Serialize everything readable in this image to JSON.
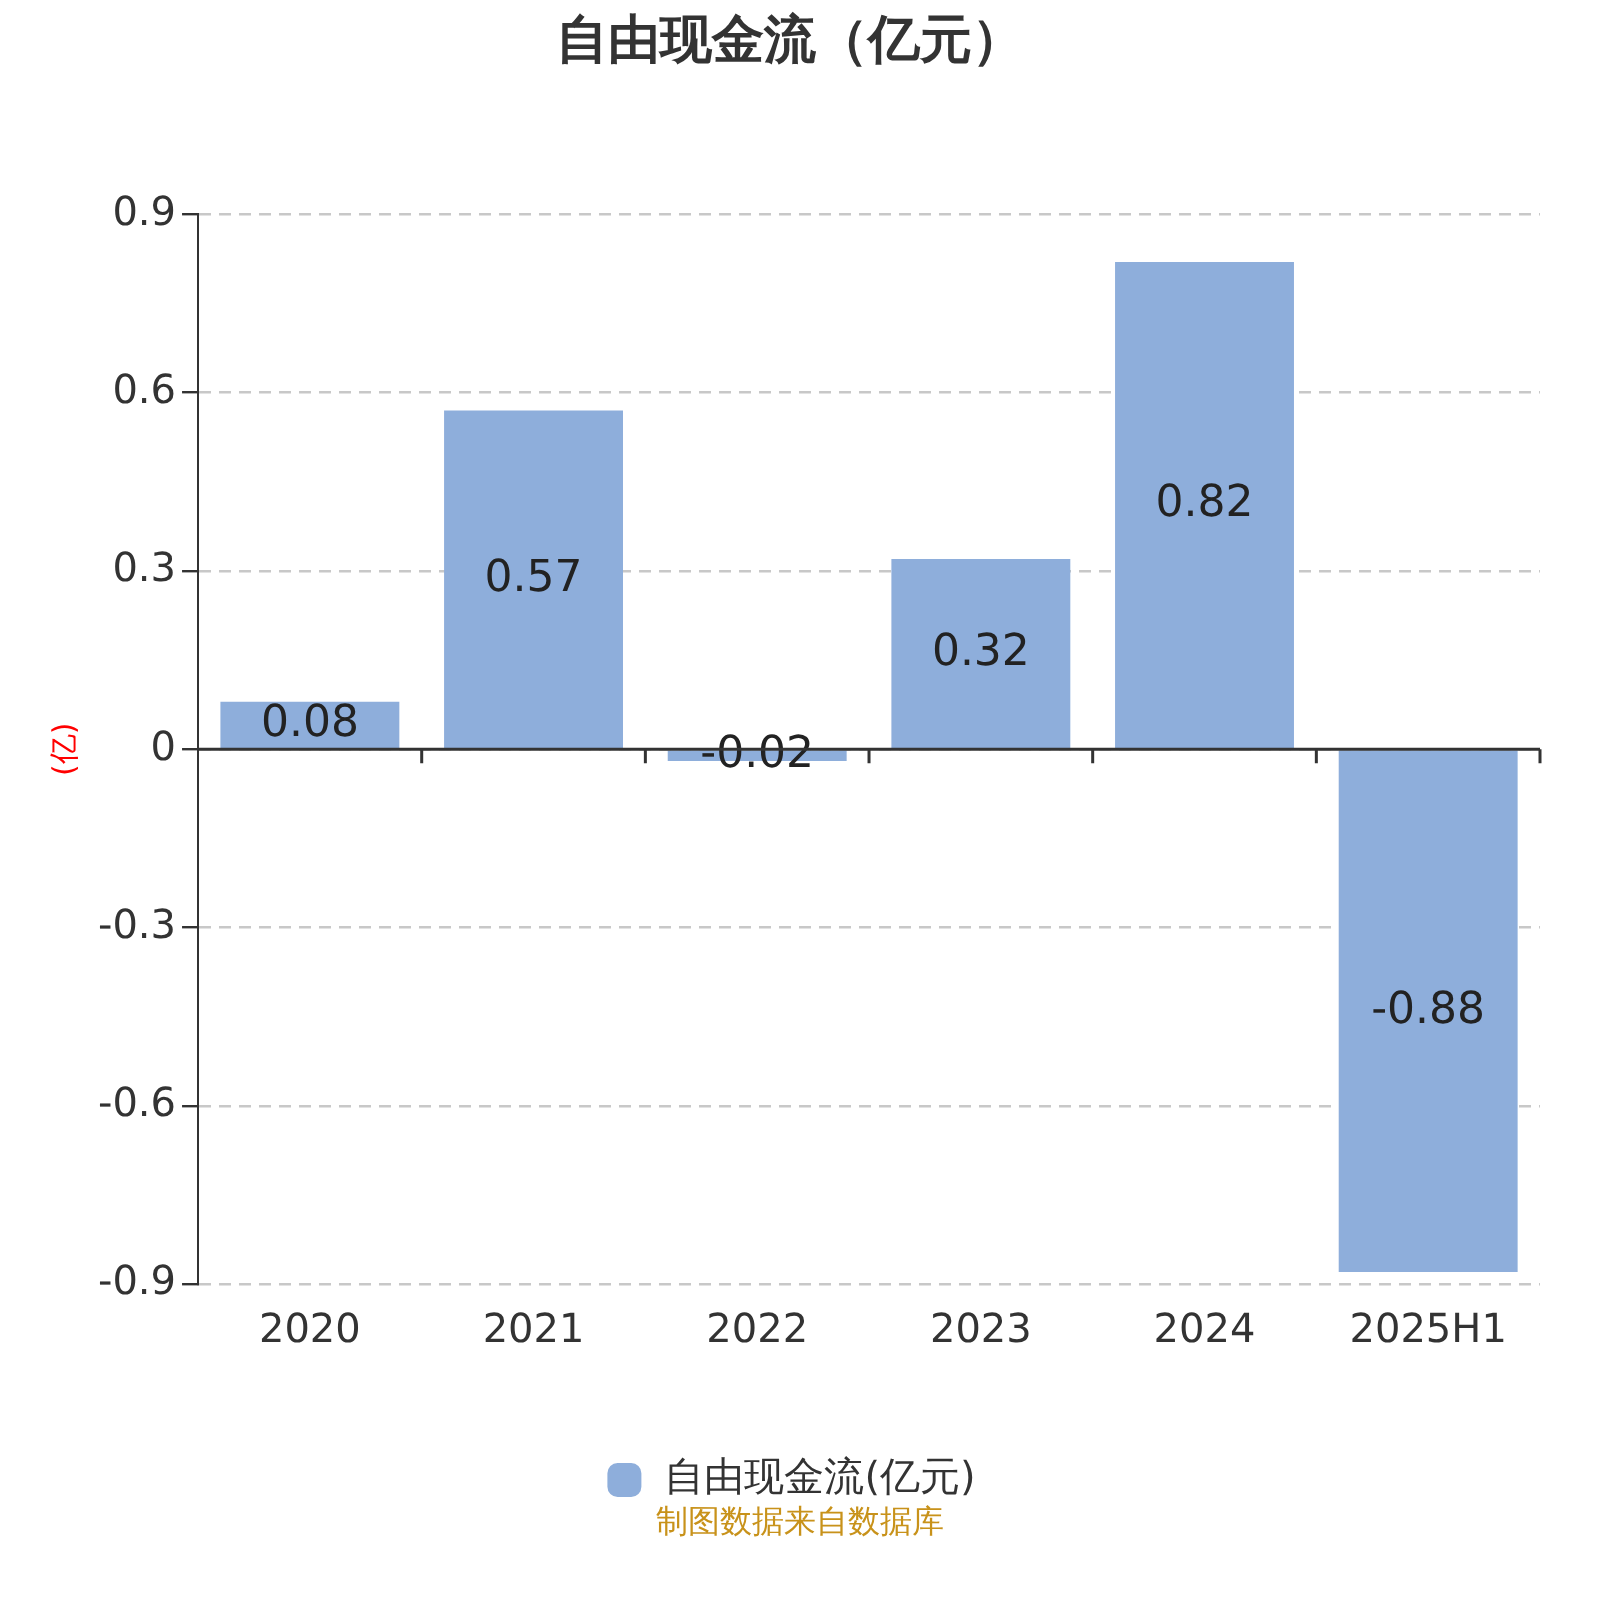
{
  "chart_data": {
    "type": "bar",
    "title": "自由现金流（亿元）",
    "ylabel": "(亿)",
    "categories": [
      "2020",
      "2021",
      "2022",
      "2023",
      "2024",
      "2025H1"
    ],
    "series": [
      {
        "name": "自由现金流(亿元)",
        "color": "#8eaedb",
        "values": [
          0.08,
          0.57,
          -0.02,
          0.32,
          0.82,
          -0.88
        ]
      }
    ],
    "ylim": [
      -0.9,
      0.9
    ],
    "yticks": [
      -0.9,
      -0.6,
      -0.3,
      0,
      0.3,
      0.6,
      0.9
    ],
    "grid": "y",
    "legend": "bottom",
    "data_labels": true,
    "annotations": [
      "制图数据来自数据库"
    ]
  }
}
